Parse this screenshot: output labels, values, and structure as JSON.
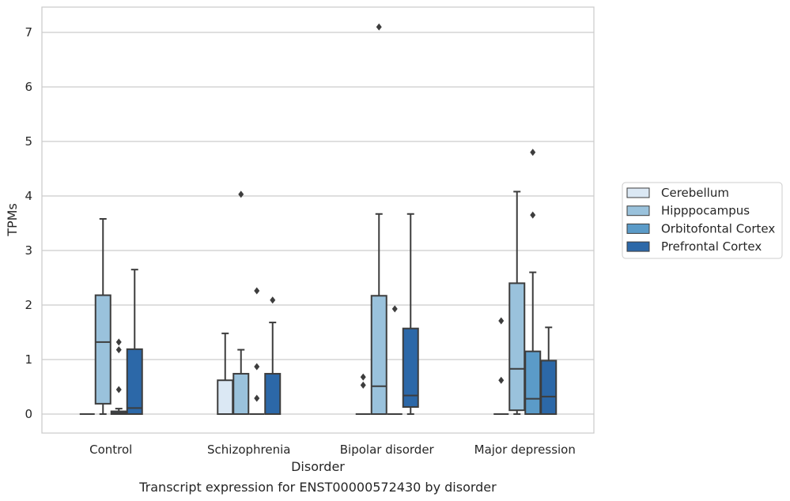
{
  "chart_data": {
    "type": "box",
    "title": "Transcript expression for ENST00000572430 by disorder",
    "xlabel": "Disorder",
    "ylabel": "TPMs",
    "ylim": [
      -0.35,
      7.45
    ],
    "yticks": [
      0,
      1,
      2,
      3,
      4,
      5,
      6,
      7
    ],
    "grid": true,
    "legend_position": "right",
    "categories": [
      "Control",
      "Schizophrenia",
      "Bipolar disorder",
      "Major depression"
    ],
    "series": [
      {
        "name": "Cerebellum",
        "color": "#dbe8f4",
        "boxes": [
          {
            "whislo": 0,
            "q1": 0,
            "med": 0,
            "q3": 0,
            "whishi": 0,
            "fliers": []
          },
          {
            "whislo": 0,
            "q1": 0,
            "med": 0,
            "q3": 0.62,
            "whishi": 1.48,
            "fliers": []
          },
          {
            "whislo": 0,
            "q1": 0,
            "med": 0,
            "q3": 0,
            "whishi": 0,
            "fliers": [
              0.53,
              0.68
            ]
          },
          {
            "whislo": 0,
            "q1": 0,
            "med": 0,
            "q3": 0,
            "whishi": 0,
            "fliers": [
              0.62,
              1.71
            ]
          }
        ]
      },
      {
        "name": "Hipppocampus",
        "color": "#9ac2dc",
        "boxes": [
          {
            "whislo": 0,
            "q1": 0.19,
            "med": 1.32,
            "q3": 2.18,
            "whishi": 3.58,
            "fliers": []
          },
          {
            "whislo": 0,
            "q1": 0,
            "med": 0,
            "q3": 0.74,
            "whishi": 1.18,
            "fliers": [
              4.03
            ]
          },
          {
            "whislo": 0,
            "q1": 0,
            "med": 0.51,
            "q3": 2.17,
            "whishi": 3.67,
            "fliers": [
              7.1
            ]
          },
          {
            "whislo": 0,
            "q1": 0.07,
            "med": 0.83,
            "q3": 2.4,
            "whishi": 4.08,
            "fliers": []
          }
        ]
      },
      {
        "name": "Orbitofontal Cortex",
        "color": "#5b9bc8",
        "boxes": [
          {
            "whislo": 0,
            "q1": 0,
            "med": 0.02,
            "q3": 0.05,
            "whishi": 0.1,
            "fliers": [
              0.45,
              1.18,
              1.32
            ]
          },
          {
            "whislo": 0,
            "q1": 0,
            "med": 0,
            "q3": 0,
            "whishi": 0,
            "fliers": [
              0.29,
              0.87,
              2.26
            ]
          },
          {
            "whislo": 0,
            "q1": 0,
            "med": 0,
            "q3": 0,
            "whishi": 0,
            "fliers": [
              1.93
            ]
          },
          {
            "whislo": 0,
            "q1": 0,
            "med": 0.28,
            "q3": 1.15,
            "whishi": 2.6,
            "fliers": [
              3.65,
              4.8
            ]
          }
        ]
      },
      {
        "name": "Prefrontal Cortex",
        "color": "#2c68a8",
        "boxes": [
          {
            "whislo": 0,
            "q1": 0,
            "med": 0.11,
            "q3": 1.19,
            "whishi": 2.65,
            "fliers": []
          },
          {
            "whislo": 0,
            "q1": 0,
            "med": 0,
            "q3": 0.74,
            "whishi": 1.68,
            "fliers": [
              2.09
            ]
          },
          {
            "whislo": 0,
            "q1": 0.13,
            "med": 0.34,
            "q3": 1.57,
            "whishi": 3.67,
            "fliers": []
          },
          {
            "whislo": 0,
            "q1": 0,
            "med": 0.32,
            "q3": 0.98,
            "whishi": 1.59,
            "fliers": []
          }
        ]
      }
    ]
  },
  "colors": {
    "grid": "#cccccc",
    "frame": "#cccccc",
    "edge": "#3d3d3d",
    "text": "#262626"
  }
}
